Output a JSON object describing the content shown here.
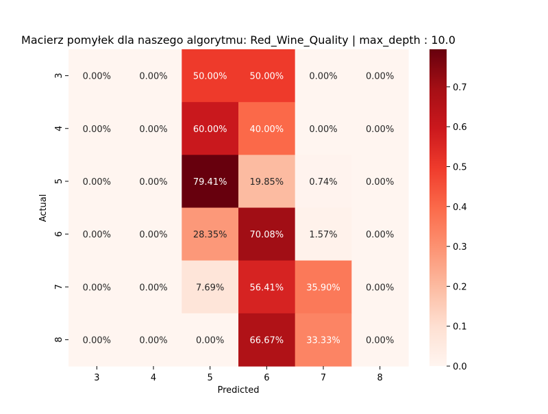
{
  "chart_data": {
    "type": "heatmap",
    "title": "Macierz pomyłek dla naszego algorytmu: Red_Wine_Quality | max_depth : 10.0",
    "xlabel": "Predicted",
    "ylabel": "Actual",
    "x_categories": [
      "3",
      "4",
      "5",
      "6",
      "7",
      "8"
    ],
    "y_categories": [
      "3",
      "4",
      "5",
      "6",
      "7",
      "8"
    ],
    "values": [
      [
        0.0,
        0.0,
        0.5,
        0.5,
        0.0,
        0.0
      ],
      [
        0.0,
        0.0,
        0.6,
        0.4,
        0.0,
        0.0
      ],
      [
        0.0,
        0.0,
        0.7941,
        0.1985,
        0.0074,
        0.0
      ],
      [
        0.0,
        0.0,
        0.2835,
        0.7008,
        0.0157,
        0.0
      ],
      [
        0.0,
        0.0,
        0.0769,
        0.5641,
        0.359,
        0.0
      ],
      [
        0.0,
        0.0,
        0.0,
        0.6667,
        0.3333,
        0.0
      ]
    ],
    "cell_labels": [
      [
        "0.00%",
        "0.00%",
        "50.00%",
        "50.00%",
        "0.00%",
        "0.00%"
      ],
      [
        "0.00%",
        "0.00%",
        "60.00%",
        "40.00%",
        "0.00%",
        "0.00%"
      ],
      [
        "0.00%",
        "0.00%",
        "79.41%",
        "19.85%",
        "0.74%",
        "0.00%"
      ],
      [
        "0.00%",
        "0.00%",
        "28.35%",
        "70.08%",
        "1.57%",
        "0.00%"
      ],
      [
        "0.00%",
        "0.00%",
        "7.69%",
        "56.41%",
        "35.90%",
        "0.00%"
      ],
      [
        "0.00%",
        "0.00%",
        "0.00%",
        "66.67%",
        "33.33%",
        "0.00%"
      ]
    ],
    "colormap": "Reds",
    "color_range": [
      0.0,
      0.7941
    ],
    "colorbar_ticks": [
      "0.0",
      "0.1",
      "0.2",
      "0.3",
      "0.4",
      "0.5",
      "0.6",
      "0.7"
    ],
    "colorbar_tick_values": [
      0.0,
      0.1,
      0.2,
      0.3,
      0.4,
      0.5,
      0.6,
      0.7
    ],
    "colors": {
      "cmap_stops": [
        "#fff5f0",
        "#fee0d2",
        "#fcbba1",
        "#fc9272",
        "#fb6a4a",
        "#ef3b2c",
        "#cb181d",
        "#a50f15",
        "#67000d"
      ],
      "text_dark": "#262626",
      "text_light": "#ffffff",
      "axis": "#000000"
    }
  }
}
